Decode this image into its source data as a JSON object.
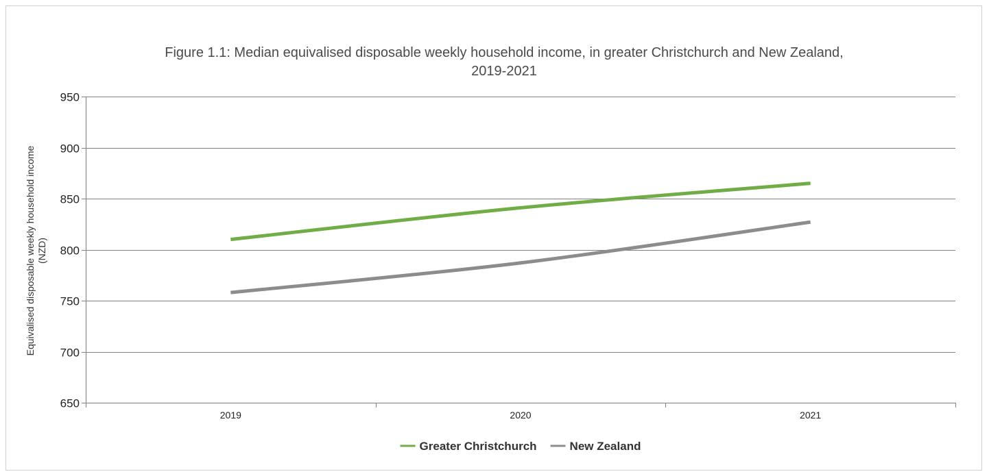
{
  "chart_data": {
    "type": "line",
    "title_line1": "Figure 1.1: Median equivalised disposable weekly household income, in greater Christchurch and New Zealand,",
    "title_line2": "2019-2021",
    "ylabel_line1": "Equivalised disposable weekly household income",
    "ylabel_line2": "(NZD)",
    "xlabel": "",
    "categories": [
      "2019",
      "2020",
      "2021"
    ],
    "ylim": [
      650,
      950
    ],
    "yticks": [
      "650",
      "700",
      "750",
      "800",
      "850",
      "900",
      "950"
    ],
    "grid": true,
    "legend_position": "bottom",
    "series": [
      {
        "name": "Greater Christchurch",
        "color": "#70ad47",
        "values": [
          810,
          841,
          865
        ]
      },
      {
        "name": "New Zealand",
        "color": "#8c8c8c",
        "values": [
          758,
          787,
          827
        ]
      }
    ]
  }
}
